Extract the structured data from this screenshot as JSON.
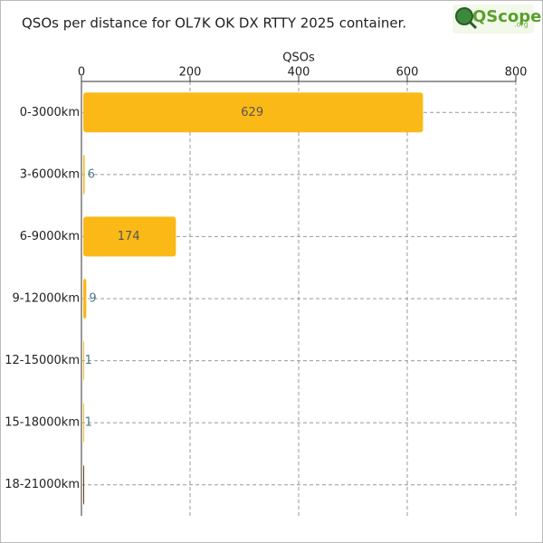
{
  "chart_data": {
    "type": "bar",
    "orientation": "horizontal",
    "title": "QSOs per distance for OL7K OK DX RTTY 2025 container.",
    "logo": "QScope",
    "logo_suffix": ".org",
    "x_label": "QSOs",
    "categories": [
      "0-3000km",
      "3-6000km",
      "6-9000km",
      "9-12000km",
      "12-15000km",
      "15-18000km",
      "18-21000km"
    ],
    "values": [
      629,
      6,
      174,
      9,
      1,
      1,
      0
    ],
    "color": "#fbb917",
    "xlim": [
      0,
      800
    ],
    "xticks": [
      0,
      200,
      400,
      600,
      800
    ],
    "grid": true
  }
}
